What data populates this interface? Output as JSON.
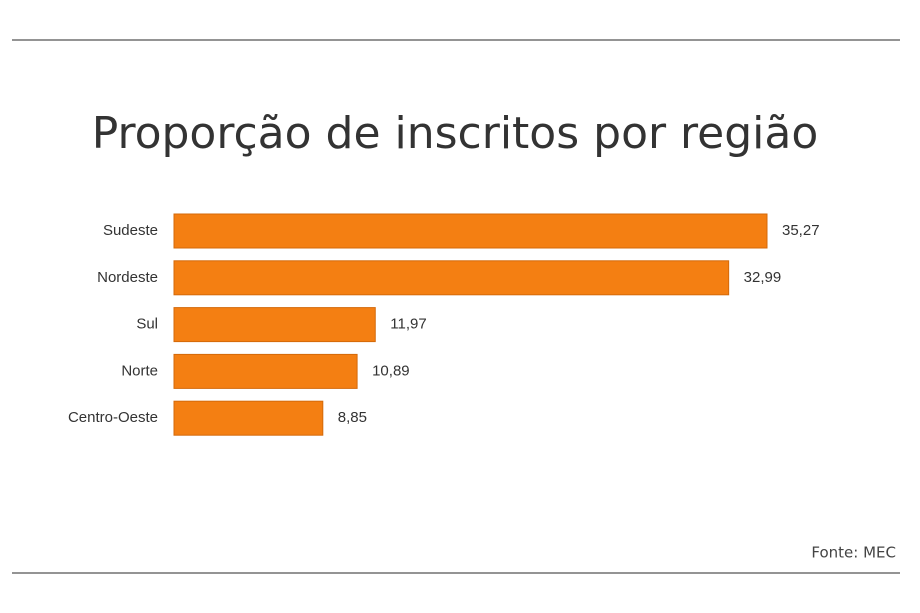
{
  "chart_data": {
    "type": "bar",
    "orientation": "horizontal",
    "title": "Proporção de inscritos por região",
    "categories": [
      "Sudeste",
      "Nordeste",
      "Sul",
      "Norte",
      "Centro-Oeste"
    ],
    "values": [
      35.27,
      32.99,
      11.97,
      10.89,
      8.85
    ],
    "value_labels": [
      "35,27",
      "32,99",
      "11,97",
      "10,89",
      "8,85"
    ],
    "color": "#f47f12",
    "source": "Fonte: MEC"
  }
}
